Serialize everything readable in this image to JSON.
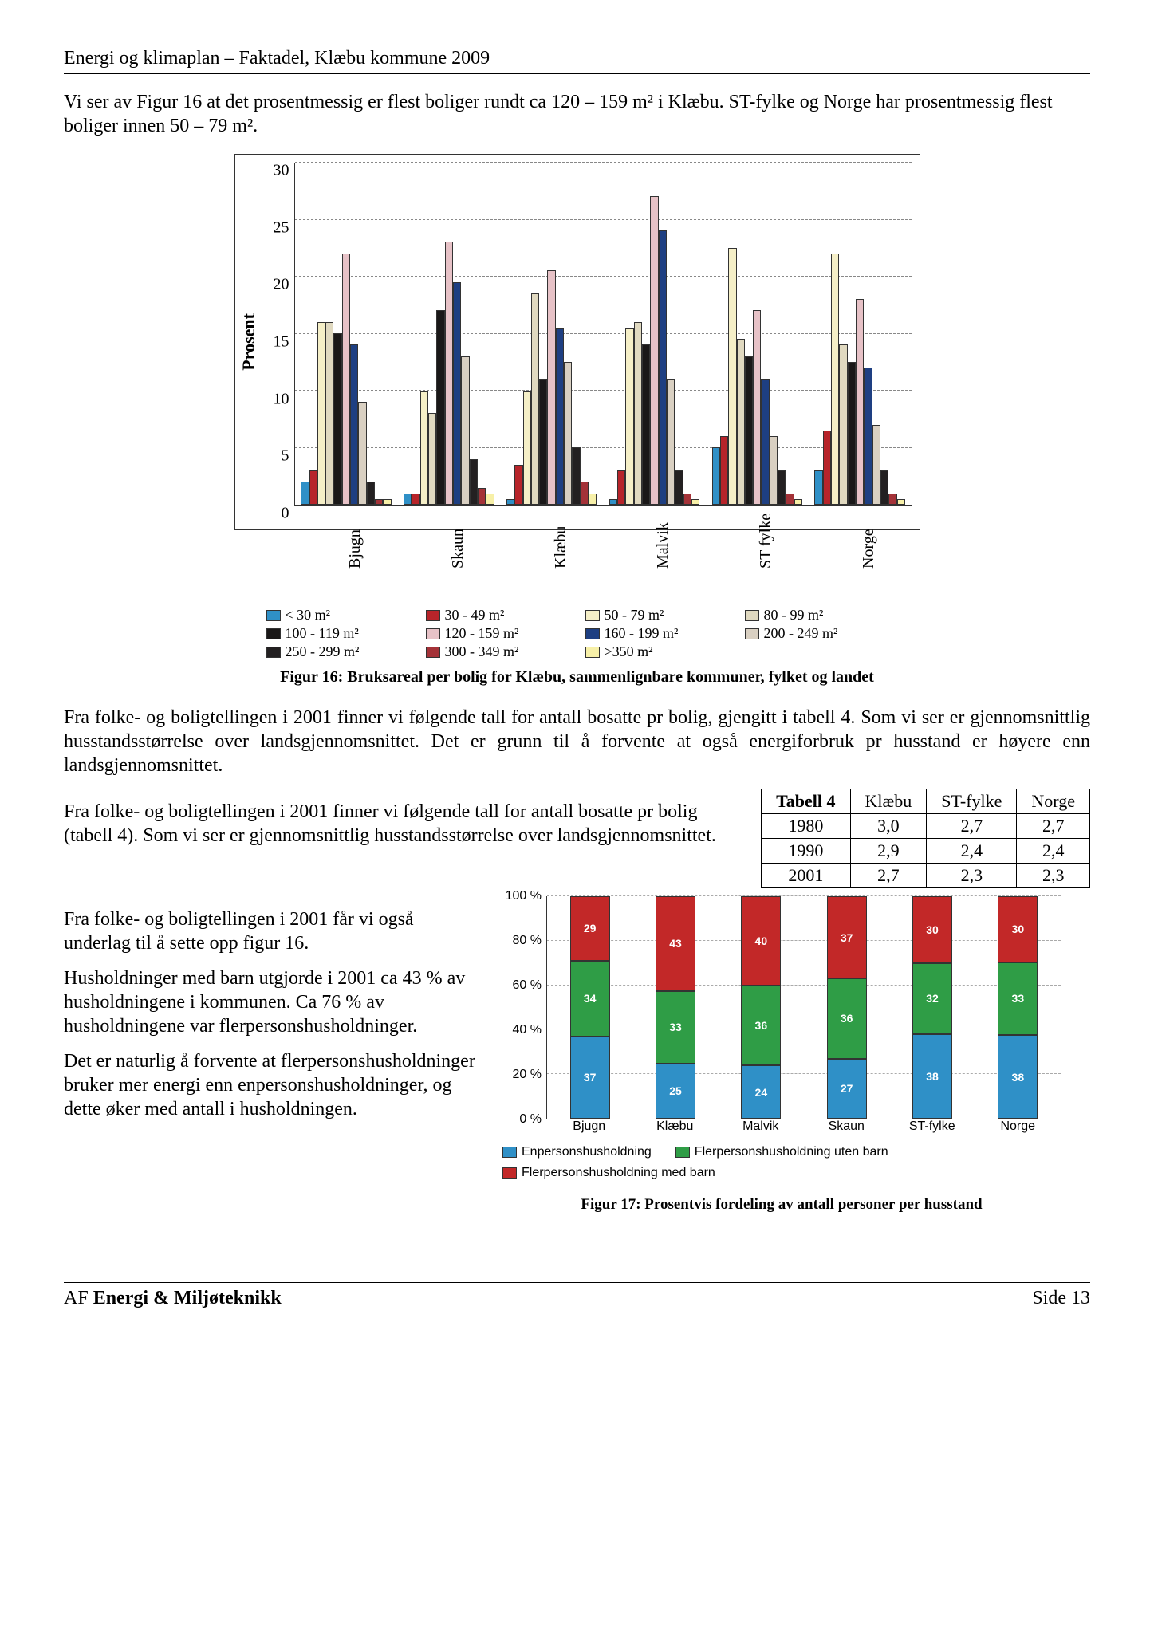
{
  "header": "Energi og klimaplan – Faktadel, Klæbu kommune 2009",
  "intro": "Vi ser av Figur 16 at det prosentmessig er flest boliger rundt ca 120 – 159 m² i Klæbu. ST-fylke og Norge har prosentmessig flest boliger innen 50 – 79 m².",
  "chart16": {
    "type": "bar",
    "ylabel": "Prosent",
    "ylim": [
      0,
      30
    ],
    "ytick_step": 5,
    "categories": [
      "Bjugn",
      "Skaun",
      "Klæbu",
      "Malvik",
      "ST fylke",
      "Norge"
    ],
    "series_labels": [
      "< 30 m²",
      "30 - 49 m²",
      "50 - 79 m²",
      "80 - 99 m²",
      "100 - 119 m²",
      "120 - 159 m²",
      "160 - 199 m²",
      "200 - 249 m²",
      "250 - 299 m²",
      "300 - 349 m²",
      ">350 m²"
    ],
    "series_colors": [
      "#2f90c7",
      "#b7242a",
      "#f5efc7",
      "#e0d9c0",
      "#1a1818",
      "#e7c2c7",
      "#1e3f82",
      "#d9d0c2",
      "#232021",
      "#a43238",
      "#f7f0a8"
    ],
    "values": [
      [
        2,
        3,
        16,
        16,
        15,
        22,
        14,
        9,
        2,
        0.5,
        0.5
      ],
      [
        1,
        1,
        10,
        8,
        17,
        23,
        19.5,
        13,
        4,
        1.5,
        1
      ],
      [
        0.5,
        3.5,
        10,
        18.5,
        11,
        20.5,
        15.5,
        12.5,
        5,
        2,
        1
      ],
      [
        0.5,
        3,
        15.5,
        16,
        14,
        27,
        24,
        11,
        3,
        1,
        0.5
      ],
      [
        5,
        6,
        22.5,
        14.5,
        13,
        17,
        11,
        6,
        3,
        1,
        0.5
      ],
      [
        3,
        6.5,
        22,
        14,
        12.5,
        18,
        12,
        7,
        3,
        1,
        0.5
      ]
    ],
    "background_color": "#ffffff",
    "grid_color": "#888888",
    "caption": "Figur 16: Bruksareal per bolig for Klæbu, sammenlignbare kommuner, fylket og landet"
  },
  "mid_para": "Fra folke- og boligtellingen i 2001 finner vi følgende tall for antall bosatte pr bolig, gjengitt i tabell 4. Som vi ser er gjennomsnittlig husstandsstørrelse over landsgjennomsnittet. Det er grunn til å forvente at også energiforbruk pr husstand er høyere enn landsgjennomsnittet.",
  "wrap_para": "Fra folke- og boligtellingen i 2001 finner vi følgende tall for antall bosatte pr bolig (tabell 4). Som vi ser er gjennomsnittlig husstandsstørrelse over landsgjennomsnittet.",
  "table4": {
    "header": [
      "Tabell 4",
      "Klæbu",
      "ST-fylke",
      "Norge"
    ],
    "rows": [
      [
        "1980",
        "3,0",
        "2,7",
        "2,7"
      ],
      [
        "1990",
        "2,9",
        "2,4",
        "2,4"
      ],
      [
        "2001",
        "2,7",
        "2,3",
        "2,3"
      ]
    ]
  },
  "left_paras": [
    "Fra folke- og boligtellingen i 2001 får vi også underlag til å sette opp figur 16.",
    "Husholdninger med barn utgjorde i 2001 ca 43 % av husholdningene i kommunen. Ca 76 % av husholdningene var flerpersonshusholdninger.",
    "Det er naturlig å forvente at flerpersonshusholdninger bruker mer energi enn enpersonshusholdninger, og dette øker med antall i husholdningen."
  ],
  "chart17": {
    "type": "stacked-bar",
    "ylim": [
      0,
      100
    ],
    "ytick_step": 20,
    "ytick_suffix": " %",
    "categories": [
      "Bjugn",
      "Klæbu",
      "Malvik",
      "Skaun",
      "ST-fylke",
      "Norge"
    ],
    "series_labels": [
      "Enpersonshusholdning",
      "Flerpersonshusholdning uten barn",
      "Flerpersonshusholdning med barn"
    ],
    "series_colors": [
      "#2f90c7",
      "#2f9d46",
      "#c22828"
    ],
    "values": [
      [
        37,
        34,
        29
      ],
      [
        25,
        33,
        43
      ],
      [
        24,
        36,
        40
      ],
      [
        27,
        36,
        37
      ],
      [
        38,
        32,
        30
      ],
      [
        38,
        33,
        30
      ]
    ],
    "grid_color": "#aaaaaa",
    "label_color": "#ffffff",
    "caption": "Figur 17: Prosentvis fordeling av antall personer per husstand"
  },
  "footer": {
    "left_prefix": "AF ",
    "left_bold": "Energi & Miljøteknikk",
    "right": "Side 13"
  }
}
